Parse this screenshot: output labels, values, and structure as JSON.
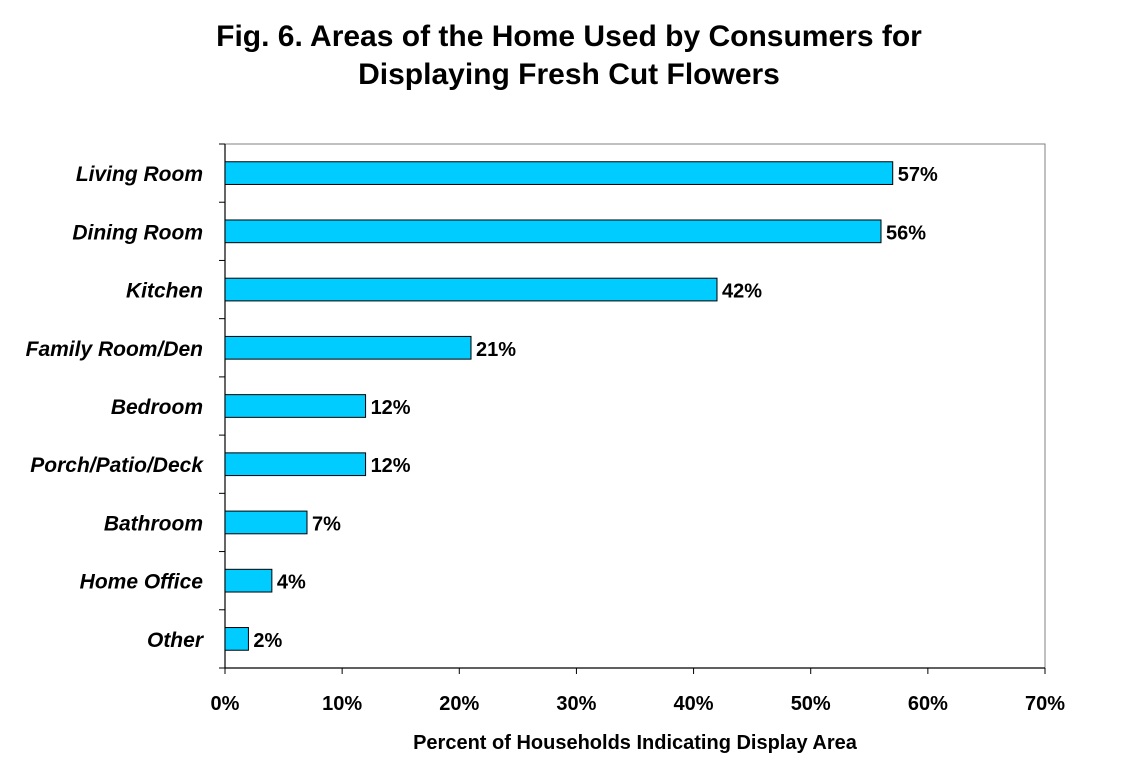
{
  "chart_data": {
    "type": "bar",
    "orientation": "horizontal",
    "title_lines": [
      "Fig. 6.  Areas of the Home Used by Consumers for",
      "Displaying Fresh Cut Flowers"
    ],
    "xlabel": "Percent of Households Indicating Display Area",
    "ylabel": "",
    "categories": [
      "Living Room",
      "Dining Room",
      "Kitchen",
      "Family Room/Den",
      "Bedroom",
      "Porch/Patio/Deck",
      "Bathroom",
      "Home Office",
      "Other"
    ],
    "values": [
      57,
      56,
      42,
      21,
      12,
      12,
      7,
      4,
      2
    ],
    "value_labels": [
      "57%",
      "56%",
      "42%",
      "21%",
      "12%",
      "12%",
      "7%",
      "4%",
      "2%"
    ],
    "xlim": [
      0,
      70
    ],
    "xticks": [
      0,
      10,
      20,
      30,
      40,
      50,
      60,
      70
    ],
    "xtick_labels": [
      "0%",
      "10%",
      "20%",
      "30%",
      "40%",
      "50%",
      "60%",
      "70%"
    ],
    "grid": false,
    "legend": "none",
    "bar_color": "#00CCFF",
    "bar_edge_color": "#000000"
  }
}
